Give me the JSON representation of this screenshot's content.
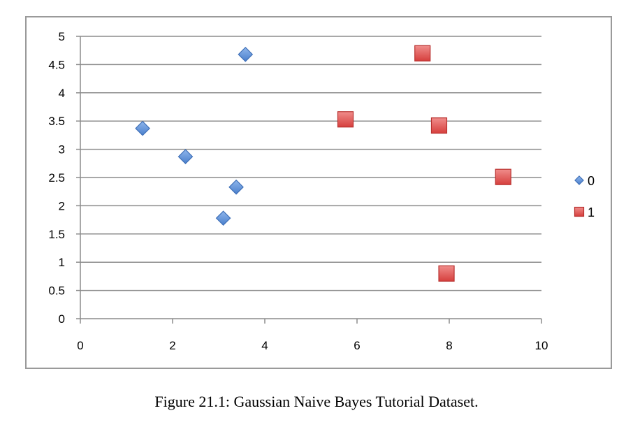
{
  "caption": "Figure 21.1: Gaussian Naive Bayes Tutorial Dataset.",
  "chart_data": {
    "type": "scatter",
    "title": "",
    "xlabel": "",
    "ylabel": "",
    "xlim": [
      0,
      10
    ],
    "ylim": [
      0,
      5
    ],
    "x_ticks": [
      0,
      2,
      4,
      6,
      8,
      10
    ],
    "y_ticks": [
      0,
      0.5,
      1,
      1.5,
      2,
      2.5,
      3,
      3.5,
      4,
      4.5,
      5
    ],
    "grid": "horizontal",
    "legend_position": "right",
    "series": [
      {
        "name": "0",
        "marker": "diamond",
        "color": "#5b8fd6",
        "points": [
          {
            "x": 1.35,
            "y": 3.37
          },
          {
            "x": 2.28,
            "y": 2.87
          },
          {
            "x": 3.1,
            "y": 1.78
          },
          {
            "x": 3.38,
            "y": 2.33
          },
          {
            "x": 3.58,
            "y": 4.68
          }
        ]
      },
      {
        "name": "1",
        "marker": "square",
        "color": "#e0514f",
        "points": [
          {
            "x": 5.75,
            "y": 3.53
          },
          {
            "x": 7.42,
            "y": 4.7
          },
          {
            "x": 7.78,
            "y": 3.42
          },
          {
            "x": 7.94,
            "y": 0.8
          },
          {
            "x": 9.17,
            "y": 2.51
          }
        ]
      }
    ]
  }
}
